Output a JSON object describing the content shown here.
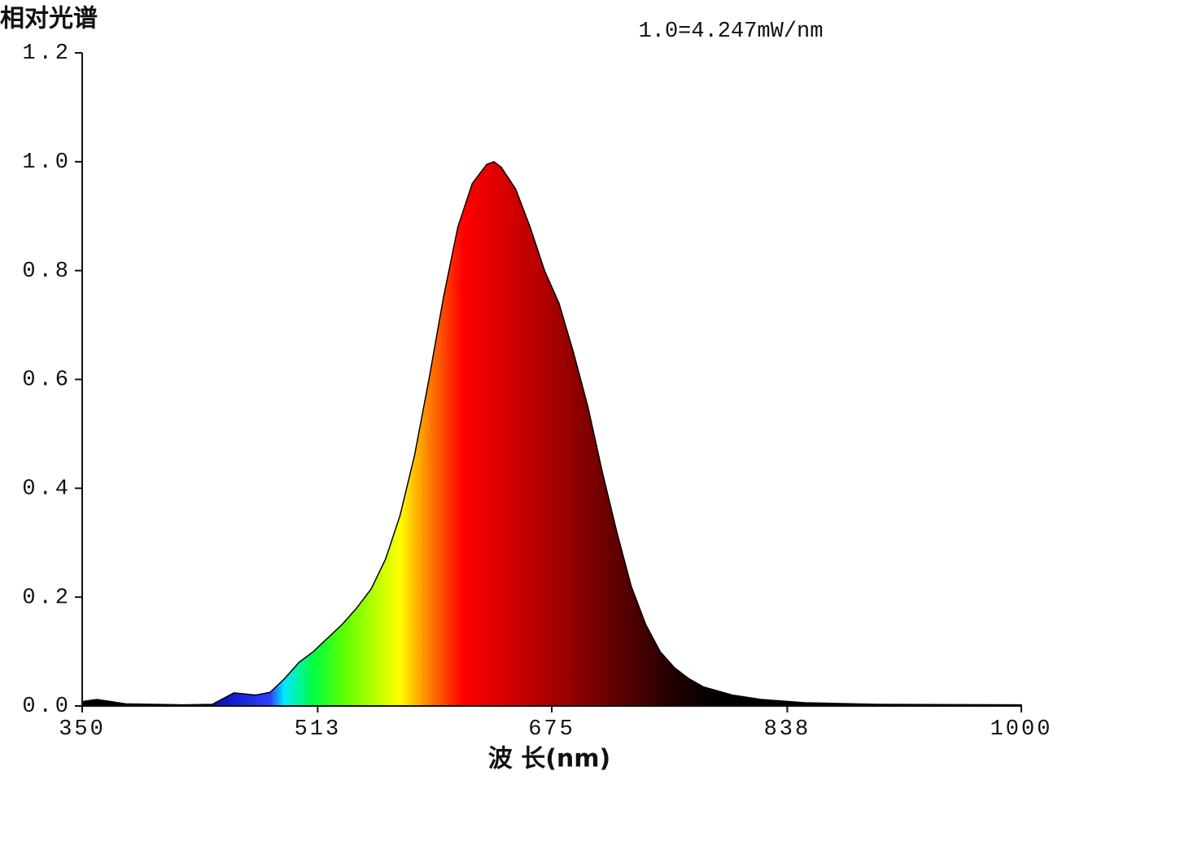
{
  "chart_data": {
    "type": "area",
    "y_label": "相对光谱",
    "x_label": "波 长(nm)",
    "annotation": "1.0=4.247mW/nm",
    "xlim": [
      350,
      1000
    ],
    "xticks": [
      350,
      513,
      675,
      838,
      1000
    ],
    "ylim": [
      0,
      1.2
    ],
    "yticks": [
      {
        "value": 0,
        "label": "0.0"
      },
      0.2,
      0.4,
      0.6,
      0.8,
      {
        "value": 1,
        "label": "1.0"
      },
      1.2
    ],
    "x": [
      350,
      360,
      370,
      380,
      400,
      420,
      440,
      455,
      470,
      480,
      490,
      500,
      510,
      520,
      530,
      540,
      550,
      560,
      570,
      580,
      590,
      600,
      610,
      620,
      630,
      635,
      640,
      650,
      660,
      670,
      680,
      690,
      700,
      710,
      720,
      730,
      740,
      750,
      760,
      770,
      780,
      800,
      820,
      850,
      900,
      1000
    ],
    "series": [
      {
        "values": [
          0.008,
          0.012,
          0.008,
          0.004,
          0.003,
          0.002,
          0.003,
          0.024,
          0.02,
          0.025,
          0.05,
          0.08,
          0.1,
          0.125,
          0.15,
          0.18,
          0.215,
          0.27,
          0.35,
          0.46,
          0.6,
          0.75,
          0.88,
          0.96,
          0.995,
          1.0,
          0.99,
          0.95,
          0.88,
          0.8,
          0.74,
          0.65,
          0.55,
          0.43,
          0.32,
          0.22,
          0.15,
          0.1,
          0.07,
          0.05,
          0.035,
          0.02,
          0.012,
          0.006,
          0.003,
          0.002
        ]
      }
    ]
  }
}
